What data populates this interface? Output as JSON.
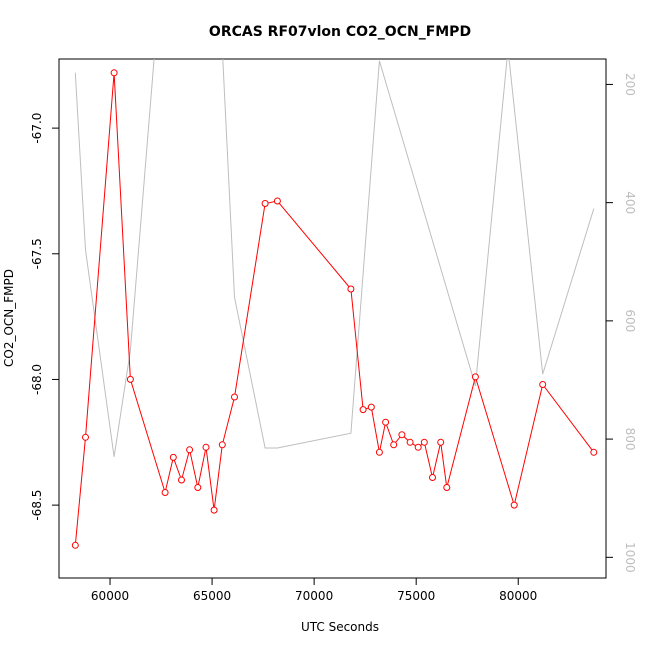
{
  "chart_data": {
    "type": "line",
    "title": "ORCAS RF07vlon CO2_OCN_FMPD",
    "xlabel": "UTC Seconds",
    "ylabel": "CO2_OCN_FMPD",
    "xlim": [
      57500,
      84300
    ],
    "ylim": [
      -68.79,
      -66.725
    ],
    "xticks": [
      60000,
      65000,
      70000,
      75000,
      80000
    ],
    "yticks": [
      -67.0,
      -67.5,
      -68.0,
      -68.5
    ],
    "ytick_labels": [
      "-67.0",
      "-67.5",
      "-68.0",
      "-68.5"
    ],
    "y2lim": [
      1035,
      157
    ],
    "y2ticks": [
      200,
      400,
      600,
      800,
      1000
    ],
    "grid": false,
    "series": [
      {
        "color": "#ff0000",
        "marker": "open-circle",
        "x": [
          58300,
          58800,
          60200,
          61000,
          62700,
          63100,
          63500,
          63900,
          64300,
          64700,
          65100,
          65500,
          66100,
          67600,
          68200,
          71800,
          72400,
          72800,
          73200,
          73500,
          73900,
          74300,
          74700,
          75100,
          75400,
          75800,
          76200,
          76500,
          77900,
          79800,
          81200,
          83700
        ],
        "y": [
          -68.66,
          -68.23,
          -66.78,
          -68.0,
          -68.45,
          -68.31,
          -68.4,
          -68.28,
          -68.43,
          -68.27,
          -68.52,
          -68.26,
          -68.07,
          -67.3,
          -67.29,
          -67.64,
          -68.12,
          -68.11,
          -68.29,
          -68.17,
          -68.26,
          -68.22,
          -68.25,
          -68.27,
          -68.25,
          -68.39,
          -68.25,
          -68.43,
          -67.99,
          -68.5,
          -68.02,
          -68.29
        ]
      },
      {
        "color": "#bebebe",
        "marker": "none",
        "axis": "right",
        "x": [
          58300,
          58800,
          60200,
          61000,
          62200,
          63100,
          64300,
          65500,
          66100,
          67600,
          68200,
          71800,
          73200,
          77900,
          79500,
          81200,
          83700
        ],
        "y": [
          180,
          480,
          830,
          650,
          140,
          140,
          140,
          140,
          560,
          815,
          815,
          790,
          160,
          710,
          140,
          690,
          410
        ]
      }
    ]
  }
}
